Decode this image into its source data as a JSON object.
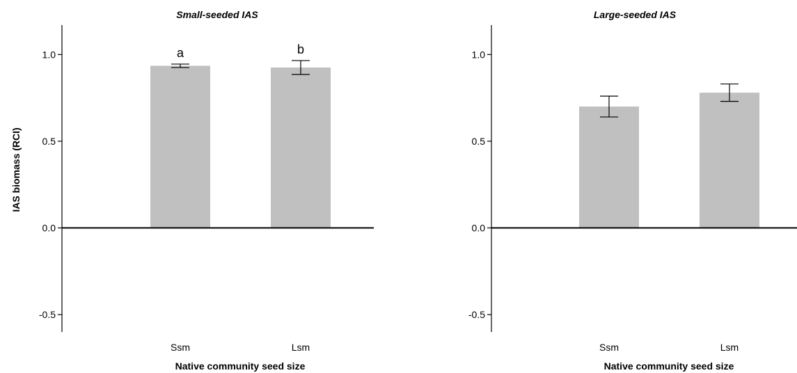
{
  "chart_data": [
    {
      "type": "bar",
      "title": "Small-seeded IAS",
      "ylabel": "IAS biomass (RCI)",
      "xlabel": "Native community seed size",
      "categories": [
        "Ssm",
        "Lsm"
      ],
      "values": [
        0.935,
        0.925
      ],
      "error": [
        0.01,
        0.04
      ],
      "annotations": [
        "a",
        "b"
      ],
      "ylim": [
        -0.6,
        1.17
      ],
      "yticks": [
        -0.5,
        0.0,
        0.5,
        1.0
      ],
      "ytick_labels": [
        "-0.5",
        "0.0",
        "0.5",
        "1.0"
      ],
      "bar_color": "#c0c0c0",
      "grid": false
    },
    {
      "type": "bar",
      "title": "Large-seeded IAS",
      "ylabel": "",
      "xlabel": "Native community seed size",
      "categories": [
        "Ssm",
        "Lsm"
      ],
      "values": [
        0.7,
        0.78
      ],
      "error": [
        0.06,
        0.05
      ],
      "annotations": [
        "",
        ""
      ],
      "ylim": [
        -0.6,
        1.17
      ],
      "yticks": [
        -0.5,
        0.0,
        0.5,
        1.0
      ],
      "ytick_labels": [
        "-0.5",
        "0.0",
        "0.5",
        "1.0"
      ],
      "bar_color": "#c0c0c0",
      "grid": false
    }
  ]
}
